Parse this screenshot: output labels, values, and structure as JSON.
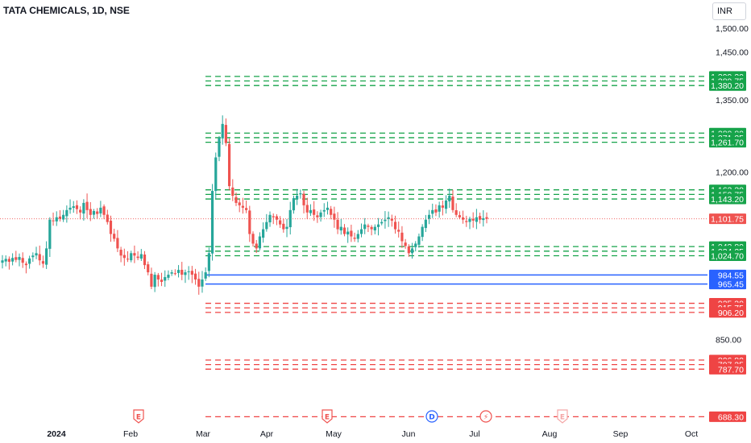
{
  "header": {
    "title": "TATA CHEMICALS, 1D, NSE",
    "currency": "INR"
  },
  "colors": {
    "up": "#26a69a",
    "down": "#ef5350",
    "support_green": "#16a34a",
    "resistance_red": "#ef4444",
    "zone_blue": "#2962ff",
    "last_price": "#ef5350",
    "axis_text": "#131722"
  },
  "chart_data": {
    "type": "candlestick",
    "y_ticks": [
      "1,500.00",
      "1,450.00",
      "1,350.00",
      "1,200.00",
      "850.00"
    ],
    "x_ticks": [
      "2024",
      "Feb",
      "Mar",
      "Apr",
      "May",
      "Jun",
      "Jul",
      "Aug",
      "Sep",
      "Oct"
    ],
    "ylim": [
      680,
      1510
    ],
    "last_price": {
      "value": 1101.75,
      "label": "1,101.75"
    },
    "levels": [
      {
        "value": 1399.3,
        "label": "1,399.30",
        "color": "green",
        "style": "dashed"
      },
      {
        "value": 1389.75,
        "label": "1,389.75",
        "color": "green",
        "style": "dashed"
      },
      {
        "value": 1380.2,
        "label": "1,380.20",
        "color": "green",
        "style": "dashed"
      },
      {
        "value": 1280.8,
        "label": "1,280.80",
        "color": "green",
        "style": "dashed"
      },
      {
        "value": 1271.25,
        "label": "1,271.25",
        "color": "green",
        "style": "dashed"
      },
      {
        "value": 1261.7,
        "label": "1,261.70",
        "color": "green",
        "style": "dashed"
      },
      {
        "value": 1162.3,
        "label": "1,162.30",
        "color": "green",
        "style": "dashed"
      },
      {
        "value": 1152.75,
        "label": "1,152.75",
        "color": "green",
        "style": "dashed"
      },
      {
        "value": 1143.2,
        "label": "1,143.20",
        "color": "green",
        "style": "dashed"
      },
      {
        "value": 1043.8,
        "label": "1,043.80",
        "color": "green",
        "style": "dashed"
      },
      {
        "value": 1034.25,
        "label": "1,034.25",
        "color": "green",
        "style": "dashed"
      },
      {
        "value": 1024.7,
        "label": "1,024.70",
        "color": "green",
        "style": "dashed"
      },
      {
        "value": 984.55,
        "label": "984.55",
        "color": "blue",
        "style": "solid"
      },
      {
        "value": 965.45,
        "label": "965.45",
        "color": "blue",
        "style": "solid"
      },
      {
        "value": 925.3,
        "label": "925.30",
        "color": "red",
        "style": "dashed"
      },
      {
        "value": 915.75,
        "label": "915.75",
        "color": "red",
        "style": "dashed"
      },
      {
        "value": 906.2,
        "label": "906.20",
        "color": "red",
        "style": "dashed"
      },
      {
        "value": 806.8,
        "label": "806.80",
        "color": "red",
        "style": "dashed"
      },
      {
        "value": 797.25,
        "label": "797.25",
        "color": "red",
        "style": "dashed"
      },
      {
        "value": 787.7,
        "label": "787.70",
        "color": "red",
        "style": "dashed"
      },
      {
        "value": 688.3,
        "label": "688.30",
        "color": "red",
        "style": "dashed"
      }
    ],
    "event_markers": [
      {
        "label": "E",
        "color": "#ef5350",
        "month": "Feb"
      },
      {
        "label": "E",
        "color": "#ef5350",
        "month": "May"
      },
      {
        "label": "D",
        "color": "#2962ff",
        "month": "Jun"
      },
      {
        "label": "⚡",
        "color": "#ef5350",
        "month": "Jul"
      },
      {
        "label": "E",
        "color": "#f4a6a6",
        "month": "Aug"
      }
    ],
    "closes": [
      1015,
      1018,
      1012,
      1020,
      1016,
      1022,
      1010,
      1005,
      1019,
      1025,
      1030,
      1015,
      1008,
      1040,
      1100,
      1098,
      1105,
      1102,
      1110,
      1120,
      1125,
      1128,
      1122,
      1115,
      1135,
      1120,
      1110,
      1118,
      1112,
      1125,
      1110,
      1095,
      1070,
      1060,
      1040,
      1025,
      1020,
      1018,
      1030,
      1025,
      1020,
      1028,
      1005,
      990,
      960,
      985,
      975,
      970,
      980,
      985,
      990,
      988,
      995,
      985,
      990,
      992,
      985,
      975,
      960,
      975,
      990,
      1030,
      1160,
      1230,
      1270,
      1300,
      1260,
      1170,
      1150,
      1135,
      1130,
      1125,
      1120,
      1070,
      1050,
      1040,
      1065,
      1080,
      1095,
      1110,
      1105,
      1100,
      1090,
      1080,
      1085,
      1120,
      1145,
      1150,
      1155,
      1130,
      1115,
      1120,
      1110,
      1105,
      1115,
      1120,
      1125,
      1110,
      1100,
      1080,
      1085,
      1070,
      1075,
      1065,
      1060,
      1070,
      1080,
      1090,
      1085,
      1080,
      1085,
      1090,
      1095,
      1100,
      1105,
      1098,
      1080,
      1075,
      1055,
      1045,
      1030,
      1040,
      1050,
      1065,
      1085,
      1100,
      1110,
      1120,
      1115,
      1130,
      1125,
      1140,
      1150,
      1120,
      1110,
      1105,
      1100,
      1095,
      1102,
      1098,
      1105,
      1100,
      1103,
      1101.75
    ]
  }
}
